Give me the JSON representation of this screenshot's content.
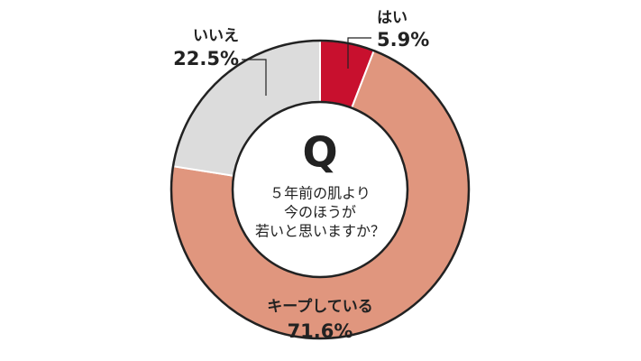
{
  "chart_data": {
    "type": "pie",
    "title": "Q",
    "subtitle": [
      "５年前の肌より",
      "今のほうが",
      "若いと思いますか？"
    ],
    "categories": [
      "はい",
      "キープしている",
      "いいえ"
    ],
    "values": [
      5.9,
      71.6,
      22.5
    ],
    "value_labels": [
      "5.9%",
      "71.6%",
      "22.5%"
    ],
    "colors": [
      "#c8102e",
      "#e0967e",
      "#dcdcdc"
    ]
  }
}
